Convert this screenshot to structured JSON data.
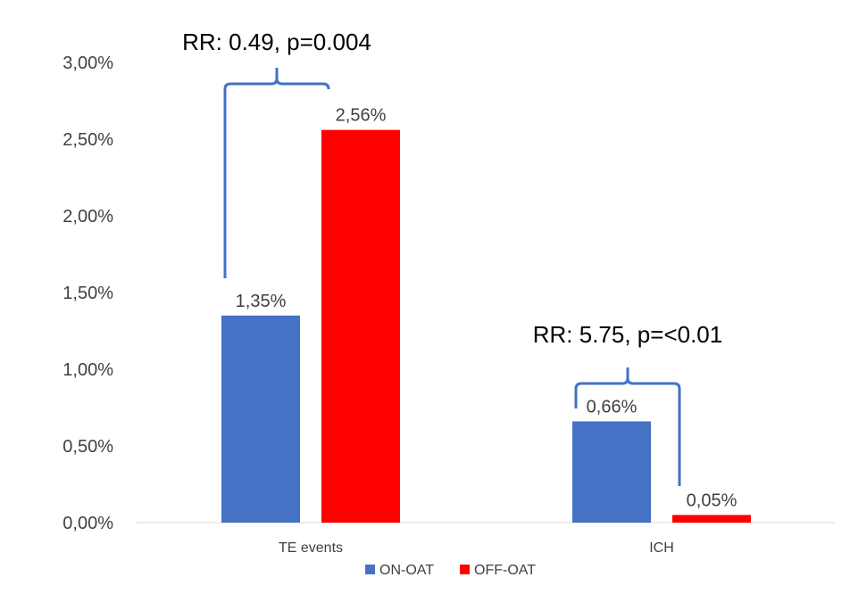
{
  "chart_data": {
    "type": "bar",
    "categories": [
      "TE events",
      "ICH"
    ],
    "series": [
      {
        "name": "ON-OAT",
        "values": [
          0.0135,
          0.0066
        ],
        "color": "#4472C4",
        "labels": [
          "1,35%",
          "0,66%"
        ]
      },
      {
        "name": "OFF-OAT",
        "values": [
          0.0256,
          0.0005
        ],
        "color": "#FF0000",
        "labels": [
          "2,56%",
          "0,05%"
        ]
      }
    ],
    "ylim": [
      0,
      0.03
    ],
    "yticks": [
      {
        "value": 0.0,
        "label": "0,00%"
      },
      {
        "value": 0.005,
        "label": "0,50%"
      },
      {
        "value": 0.01,
        "label": "1,00%"
      },
      {
        "value": 0.015,
        "label": "1,50%"
      },
      {
        "value": 0.02,
        "label": "2,00%"
      },
      {
        "value": 0.025,
        "label": "2,50%"
      },
      {
        "value": 0.03,
        "label": "3,00%"
      }
    ],
    "grid": false,
    "legend": "bottom",
    "annotations": [
      {
        "category": "TE events",
        "text": "RR: 0.49, p=0.004"
      },
      {
        "category": "ICH",
        "text": "RR: 5.75, p=<0.01"
      }
    ],
    "bracket_color": "#4472C4"
  }
}
